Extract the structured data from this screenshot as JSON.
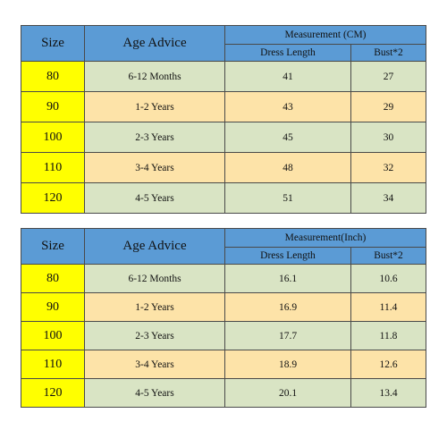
{
  "colors": {
    "header_blue": "#5b9bd5",
    "size_yellow": "#ffff00",
    "row_green": "#d9e4c4",
    "row_peach": "#fde3a8"
  },
  "tables": [
    {
      "headers": {
        "size": "Size",
        "age": "Age Advice",
        "measurement": "Measurement (CM)",
        "dress_length": "Dress Length",
        "bust": "Bust*2"
      },
      "rows": [
        {
          "size": "80",
          "age": "6-12 Months",
          "dress_length": "41",
          "bust": "27"
        },
        {
          "size": "90",
          "age": "1-2 Years",
          "dress_length": "43",
          "bust": "29"
        },
        {
          "size": "100",
          "age": "2-3 Years",
          "dress_length": "45",
          "bust": "30"
        },
        {
          "size": "110",
          "age": "3-4 Years",
          "dress_length": "48",
          "bust": "32"
        },
        {
          "size": "120",
          "age": "4-5 Years",
          "dress_length": "51",
          "bust": "34"
        }
      ]
    },
    {
      "headers": {
        "size": "Size",
        "age": "Age Advice",
        "measurement": "Measurement(Inch)",
        "dress_length": "Dress Length",
        "bust": "Bust*2"
      },
      "rows": [
        {
          "size": "80",
          "age": "6-12 Months",
          "dress_length": "16.1",
          "bust": "10.6"
        },
        {
          "size": "90",
          "age": "1-2 Years",
          "dress_length": "16.9",
          "bust": "11.4"
        },
        {
          "size": "100",
          "age": "2-3 Years",
          "dress_length": "17.7",
          "bust": "11.8"
        },
        {
          "size": "110",
          "age": "3-4 Years",
          "dress_length": "18.9",
          "bust": "12.6"
        },
        {
          "size": "120",
          "age": "4-5 Years",
          "dress_length": "20.1",
          "bust": "13.4"
        }
      ]
    }
  ]
}
